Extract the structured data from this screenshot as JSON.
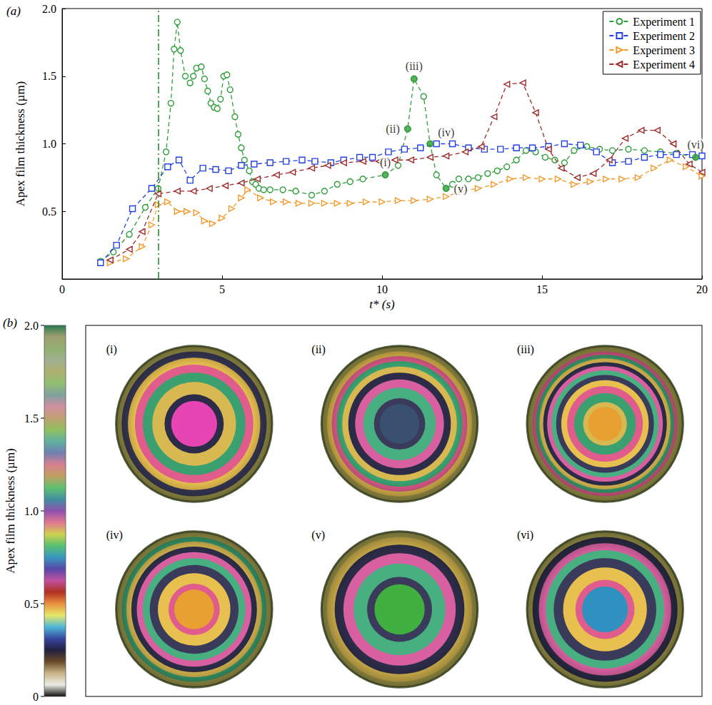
{
  "chart_data": [
    {
      "type": "line",
      "panel_label": "(a)",
      "xlabel": "t* (s)",
      "ylabel": "Apex film thickness (µm)",
      "xlim": [
        0,
        20
      ],
      "ylim": [
        0,
        2
      ],
      "xticks": [
        0,
        5,
        10,
        15,
        20
      ],
      "yticks": [
        0.5,
        {
          "value": 1,
          "label": "1.0"
        },
        1.5,
        {
          "value": 2,
          "label": "2.0"
        }
      ],
      "legend": "upper right",
      "grid": false,
      "series": [
        {
          "name": "Experiment 1",
          "color": "#2e9e3a",
          "marker": "circle",
          "line_style": "dashed",
          "x": [
            1.2,
            1.6,
            2.1,
            2.6,
            3.0,
            3.25,
            3.4,
            3.5,
            3.6,
            3.7,
            3.85,
            4.0,
            4.1,
            4.2,
            4.35,
            4.45,
            4.55,
            4.65,
            4.75,
            4.85,
            4.95,
            5.05,
            5.15,
            5.25,
            5.4,
            5.5,
            5.6,
            5.7,
            5.85,
            5.95,
            6.05,
            6.15,
            6.3,
            6.5,
            6.9,
            7.3,
            7.8,
            8.2,
            8.6,
            9.0,
            9.4,
            10.1,
            10.5,
            10.8,
            11.0,
            11.3,
            11.5,
            11.7,
            12.0,
            12.2,
            12.4,
            12.7,
            13.0,
            13.3,
            13.6,
            13.9,
            14.2,
            14.5,
            14.8,
            15.1,
            15.4,
            15.7,
            16.0,
            16.4,
            16.8,
            17.2,
            17.7,
            18.2,
            18.7,
            19.2,
            19.8
          ],
          "values": [
            0.13,
            0.2,
            0.33,
            0.53,
            0.67,
            0.94,
            1.3,
            1.7,
            1.9,
            1.69,
            1.5,
            1.45,
            1.5,
            1.56,
            1.57,
            1.48,
            1.39,
            1.3,
            1.27,
            1.26,
            1.33,
            1.5,
            1.51,
            1.4,
            1.2,
            1.07,
            0.97,
            0.88,
            0.8,
            0.72,
            0.7,
            0.67,
            0.66,
            0.66,
            0.66,
            0.65,
            0.62,
            0.65,
            0.7,
            0.72,
            0.74,
            0.77,
            0.84,
            1.11,
            1.48,
            1.35,
            1.0,
            0.77,
            0.67,
            0.7,
            0.74,
            0.74,
            0.75,
            0.78,
            0.8,
            0.83,
            0.88,
            0.95,
            0.94,
            0.9,
            0.88,
            0.86,
            0.95,
            0.98,
            0.96,
            0.95,
            0.96,
            0.95,
            0.94,
            0.93,
            0.9
          ]
        },
        {
          "name": "Experiment 2",
          "color": "#2342e0",
          "marker": "square",
          "line_style": "dashed",
          "x": [
            1.2,
            1.7,
            2.2,
            2.8,
            3.3,
            3.65,
            4.0,
            4.4,
            4.8,
            5.2,
            5.6,
            6.0,
            6.5,
            7.0,
            7.5,
            7.9,
            8.4,
            8.8,
            9.3,
            9.7,
            10.2,
            10.7,
            11.2,
            11.7,
            12.2,
            12.7,
            13.2,
            13.7,
            14.2,
            14.7,
            15.2,
            15.7,
            16.2,
            16.7,
            17.2,
            17.7,
            18.2,
            18.7,
            19.2,
            19.7,
            20.0
          ],
          "values": [
            0.12,
            0.25,
            0.52,
            0.67,
            0.83,
            0.88,
            0.73,
            0.82,
            0.81,
            0.8,
            0.84,
            0.85,
            0.86,
            0.87,
            0.88,
            0.87,
            0.86,
            0.88,
            0.9,
            0.9,
            0.94,
            0.96,
            0.97,
            1.0,
            1.0,
            0.97,
            0.96,
            0.96,
            0.97,
            0.97,
            0.98,
            1.0,
            0.99,
            0.94,
            0.86,
            0.87,
            0.9,
            0.92,
            0.92,
            0.92,
            0.91
          ]
        },
        {
          "name": "Experiment 3",
          "color": "#f39a2c",
          "marker": "triangle-right",
          "line_style": "dashed",
          "x": [
            1.5,
            2.0,
            2.5,
            2.8,
            3.0,
            3.3,
            3.6,
            3.9,
            4.2,
            4.45,
            4.7,
            5.0,
            5.3,
            5.6,
            5.8,
            6.2,
            6.6,
            7.0,
            7.4,
            7.8,
            8.2,
            8.6,
            9.0,
            9.5,
            10.0,
            10.5,
            11.0,
            11.5,
            12.0,
            12.5,
            13.0,
            13.5,
            14.0,
            14.5,
            15.0,
            15.5,
            16.0,
            16.5,
            17.0,
            17.5,
            18.0,
            18.5,
            19.0,
            19.5,
            20.0
          ],
          "values": [
            0.12,
            0.15,
            0.24,
            0.4,
            0.55,
            0.57,
            0.5,
            0.5,
            0.49,
            0.43,
            0.41,
            0.45,
            0.52,
            0.6,
            0.66,
            0.6,
            0.57,
            0.57,
            0.56,
            0.56,
            0.56,
            0.56,
            0.56,
            0.57,
            0.57,
            0.58,
            0.58,
            0.59,
            0.61,
            0.65,
            0.67,
            0.7,
            0.74,
            0.75,
            0.74,
            0.74,
            0.7,
            0.72,
            0.74,
            0.74,
            0.75,
            0.82,
            0.88,
            0.83,
            0.76
          ]
        },
        {
          "name": "Experiment 4",
          "color": "#a02a2a",
          "marker": "triangle-left",
          "line_style": "dashed",
          "x": [
            1.5,
            2.1,
            2.5,
            3.0,
            3.6,
            4.1,
            4.6,
            5.1,
            5.6,
            6.1,
            6.7,
            7.2,
            7.8,
            8.3,
            8.8,
            9.4,
            9.9,
            10.4,
            10.9,
            11.5,
            12.0,
            12.6,
            13.1,
            13.5,
            13.9,
            14.4,
            14.8,
            15.2,
            15.6,
            16.1,
            16.6,
            17.1,
            17.6,
            18.1,
            18.6,
            19.1,
            19.6,
            20.0
          ],
          "values": [
            0.14,
            0.22,
            0.35,
            0.63,
            0.65,
            0.65,
            0.67,
            0.69,
            0.71,
            0.74,
            0.77,
            0.79,
            0.82,
            0.84,
            0.86,
            0.87,
            0.87,
            0.88,
            0.88,
            0.9,
            0.91,
            0.94,
            0.98,
            1.2,
            1.44,
            1.45,
            1.23,
            0.96,
            0.82,
            0.75,
            0.78,
            0.88,
            1.04,
            1.1,
            1.1,
            1.0,
            0.85,
            0.79
          ]
        }
      ],
      "annotations": [
        {
          "label": "(i)",
          "x": 10.1,
          "y": 0.77
        },
        {
          "label": "(ii)",
          "x": 10.8,
          "y": 1.11
        },
        {
          "label": "(iii)",
          "x": 11.0,
          "y": 1.48
        },
        {
          "label": "(iv)",
          "x": 11.5,
          "y": 1.0
        },
        {
          "label": "(v)",
          "x": 12.0,
          "y": 0.67
        },
        {
          "label": "(vi)",
          "x": 19.8,
          "y": 0.9
        }
      ],
      "reference_line": {
        "x": 3.0,
        "color": "#2e8b2e",
        "line_style": "dashdot"
      }
    },
    {
      "type": "image_grid",
      "panel_label": "(b)",
      "ylabel": "Apex film thickness (µm)",
      "ylim": [
        0,
        2
      ],
      "yticks": [
        0,
        0.5,
        {
          "value": 1,
          "label": "1.0"
        },
        1.5,
        {
          "value": 2,
          "label": "2.0"
        }
      ],
      "images": [
        "(i)",
        "(ii)",
        "(iii)",
        "(iv)",
        "(v)",
        "(vi)"
      ]
    }
  ]
}
